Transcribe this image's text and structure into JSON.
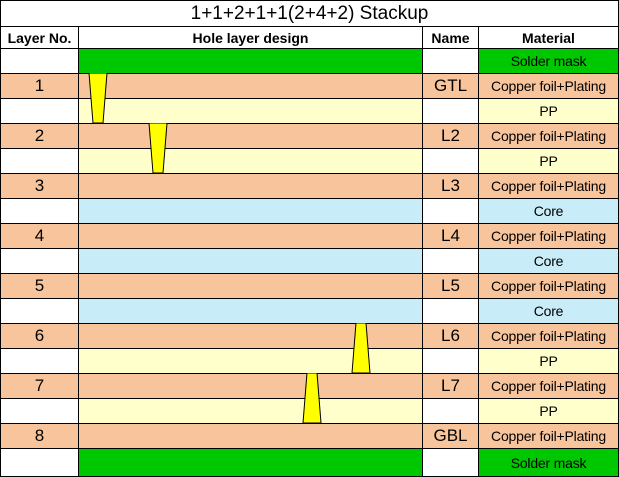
{
  "title": "1+1+2+1+1(2+4+2) Stackup",
  "headers": {
    "layer_no": "Layer No.",
    "hole_design": "Hole layer design",
    "name": "Name",
    "material": "Material"
  },
  "colors": {
    "copper": "#f8c49c",
    "pp": "#ffffcc",
    "core": "#c8ecf8",
    "solder_mask": "#00c800",
    "via": "#ffff00",
    "white": "#ffffff"
  },
  "rows": [
    {
      "type": "solder_mask",
      "layer": "",
      "name": "",
      "material": "Solder mask"
    },
    {
      "type": "copper",
      "layer": "1",
      "name": "GTL",
      "material": "Copper foil+Plating"
    },
    {
      "type": "pp",
      "layer": "",
      "name": "",
      "material": "PP"
    },
    {
      "type": "copper",
      "layer": "2",
      "name": "L2",
      "material": "Copper foil+Plating"
    },
    {
      "type": "pp",
      "layer": "",
      "name": "",
      "material": "PP"
    },
    {
      "type": "copper",
      "layer": "3",
      "name": "L3",
      "material": "Copper foil+Plating"
    },
    {
      "type": "core",
      "layer": "",
      "name": "",
      "material": "Core"
    },
    {
      "type": "copper",
      "layer": "4",
      "name": "L4",
      "material": "Copper foil+Plating"
    },
    {
      "type": "core",
      "layer": "",
      "name": "",
      "material": "Core"
    },
    {
      "type": "copper",
      "layer": "5",
      "name": "L5",
      "material": "Copper foil+Plating"
    },
    {
      "type": "core",
      "layer": "",
      "name": "",
      "material": "Core"
    },
    {
      "type": "copper",
      "layer": "6",
      "name": "L6",
      "material": "Copper foil+Plating"
    },
    {
      "type": "pp",
      "layer": "",
      "name": "",
      "material": "PP"
    },
    {
      "type": "copper",
      "layer": "7",
      "name": "L7",
      "material": "Copper foil+Plating"
    },
    {
      "type": "pp",
      "layer": "",
      "name": "",
      "material": "PP"
    },
    {
      "type": "copper",
      "layer": "8",
      "name": "GBL",
      "material": "Copper foil+Plating"
    },
    {
      "type": "solder_mask",
      "layer": "",
      "name": "",
      "material": "Solder mask"
    }
  ],
  "vias": [
    {
      "from_layer": "1",
      "to_layer": "2",
      "direction": "down"
    },
    {
      "from_layer": "2",
      "to_layer": "3",
      "direction": "down"
    },
    {
      "from_layer": "7",
      "to_layer": "6",
      "direction": "up"
    },
    {
      "from_layer": "8",
      "to_layer": "7",
      "direction": "up"
    }
  ]
}
